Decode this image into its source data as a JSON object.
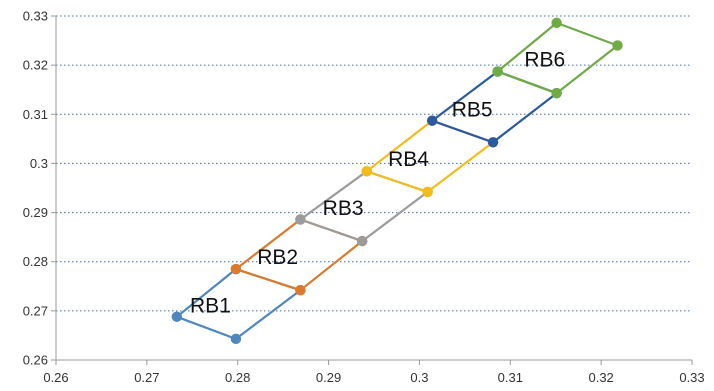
{
  "chart_data": {
    "type": "scatter",
    "title": "",
    "xlabel": "",
    "ylabel": "",
    "xlim": [
      0.26,
      0.33
    ],
    "ylim": [
      0.26,
      0.33
    ],
    "x_ticks": [
      "0.26",
      "0.27",
      "0.28",
      "0.29",
      "0.3",
      "0.31",
      "0.32",
      "0.33"
    ],
    "y_ticks": [
      "0.26",
      "0.27",
      "0.28",
      "0.29",
      "0.3",
      "0.31",
      "0.32",
      "0.33"
    ],
    "grid": "horizontal dotted",
    "legend": "none",
    "series": [
      {
        "name": "RB1",
        "color": "#4e86c0",
        "points": [
          [
            0.2733,
            0.2688
          ],
          [
            0.2798,
            0.2785
          ],
          [
            0.2869,
            0.2742
          ],
          [
            0.2798,
            0.2643
          ],
          [
            0.2733,
            0.2688
          ]
        ]
      },
      {
        "name": "RB2",
        "color": "#dd7a2a",
        "points": [
          [
            0.2798,
            0.2785
          ],
          [
            0.2869,
            0.2886
          ],
          [
            0.2937,
            0.2842
          ],
          [
            0.2869,
            0.2742
          ],
          [
            0.2798,
            0.2785
          ]
        ]
      },
      {
        "name": "RB3",
        "color": "#9b9b9b",
        "points": [
          [
            0.2869,
            0.2886
          ],
          [
            0.2942,
            0.2984
          ],
          [
            0.3009,
            0.2942
          ],
          [
            0.2937,
            0.2842
          ],
          [
            0.2869,
            0.2886
          ]
        ]
      },
      {
        "name": "RB4",
        "color": "#f2bd19",
        "points": [
          [
            0.2942,
            0.2984
          ],
          [
            0.3014,
            0.3087
          ],
          [
            0.3081,
            0.3043
          ],
          [
            0.3009,
            0.2942
          ],
          [
            0.2942,
            0.2984
          ]
        ]
      },
      {
        "name": "RB5",
        "color": "#2b5aa3",
        "points": [
          [
            0.3014,
            0.3087
          ],
          [
            0.3086,
            0.3187
          ],
          [
            0.3151,
            0.3143
          ],
          [
            0.3081,
            0.3043
          ],
          [
            0.3014,
            0.3087
          ]
        ]
      },
      {
        "name": "RB6",
        "color": "#6fab45",
        "points": [
          [
            0.3086,
            0.3187
          ],
          [
            0.3151,
            0.3286
          ],
          [
            0.3218,
            0.324
          ],
          [
            0.3151,
            0.3143
          ],
          [
            0.3086,
            0.3187
          ]
        ]
      }
    ],
    "annotations": [
      {
        "text": "RB1",
        "x": 0.277,
        "y": 0.2711
      },
      {
        "text": "RB2",
        "x": 0.2844,
        "y": 0.281
      },
      {
        "text": "RB3",
        "x": 0.2916,
        "y": 0.2909
      },
      {
        "text": "RB4",
        "x": 0.2988,
        "y": 0.3009
      },
      {
        "text": "RB5",
        "x": 0.3058,
        "y": 0.311
      },
      {
        "text": "RB6",
        "x": 0.3138,
        "y": 0.3211
      }
    ],
    "axis_color": "#9a9a9a",
    "grid_color": "#3b6fb0"
  }
}
